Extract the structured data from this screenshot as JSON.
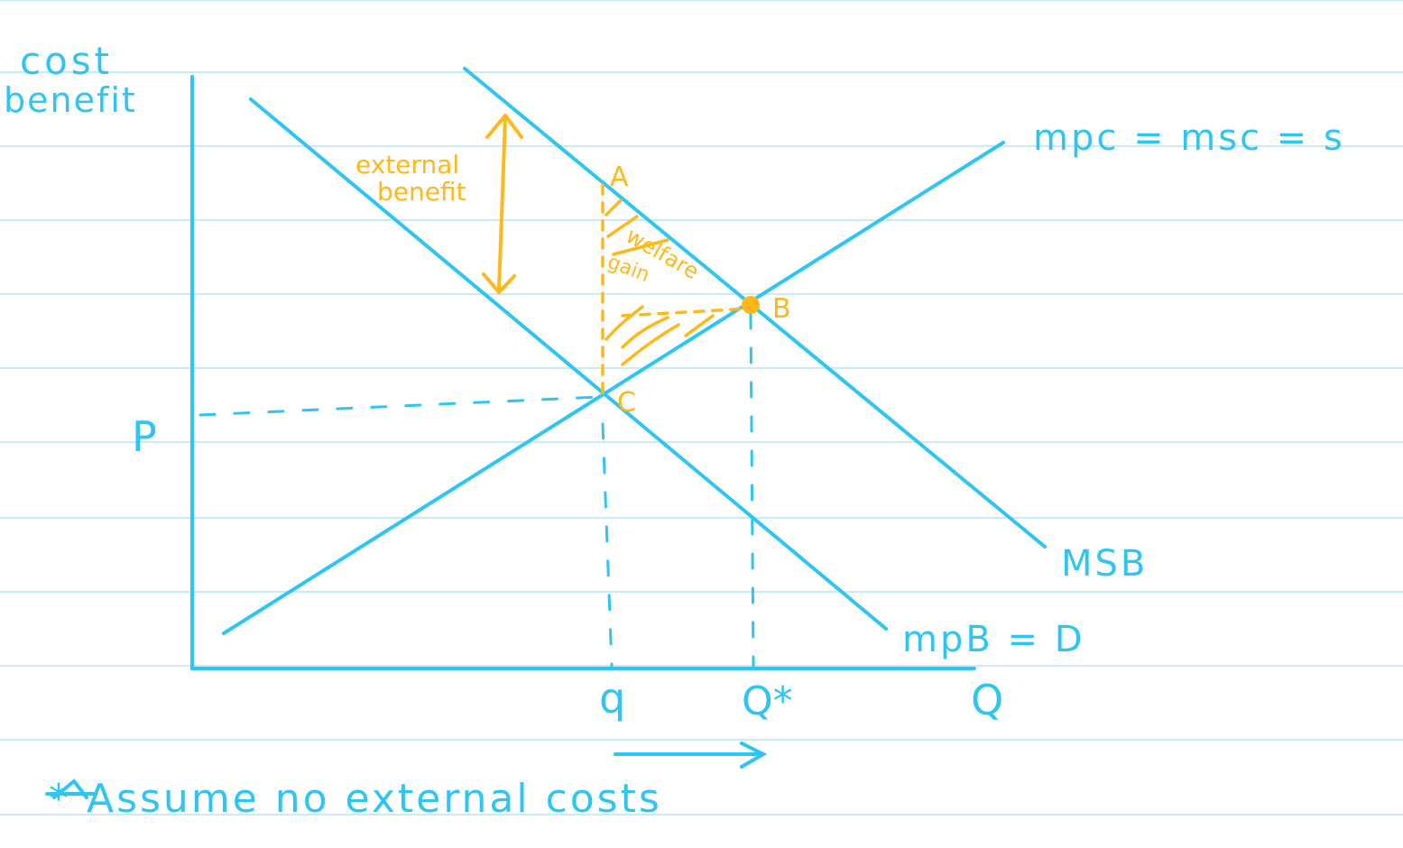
{
  "axes": {
    "y_label_line1": "cost",
    "y_label_line2": "benefit",
    "x_label": "Q"
  },
  "curves": {
    "supply_label": "mpc = msc = s",
    "msb_label": "MSB",
    "demand_label": "mpB = D"
  },
  "points": {
    "a": "A",
    "b": "B",
    "c": "C"
  },
  "annotations": {
    "external_benefit_line1": "external",
    "external_benefit_line2": "benefit",
    "welfare_gain_line1": "welfare",
    "welfare_gain_line2": "gain",
    "price_label": "P",
    "q_label": "q",
    "q_star_label": "Q*"
  },
  "footnote": "* Assume no external costs",
  "colors": {
    "blue": "#2ec5f5",
    "orange": "#ffb81c",
    "ruled_line": "#c7ebf8"
  }
}
